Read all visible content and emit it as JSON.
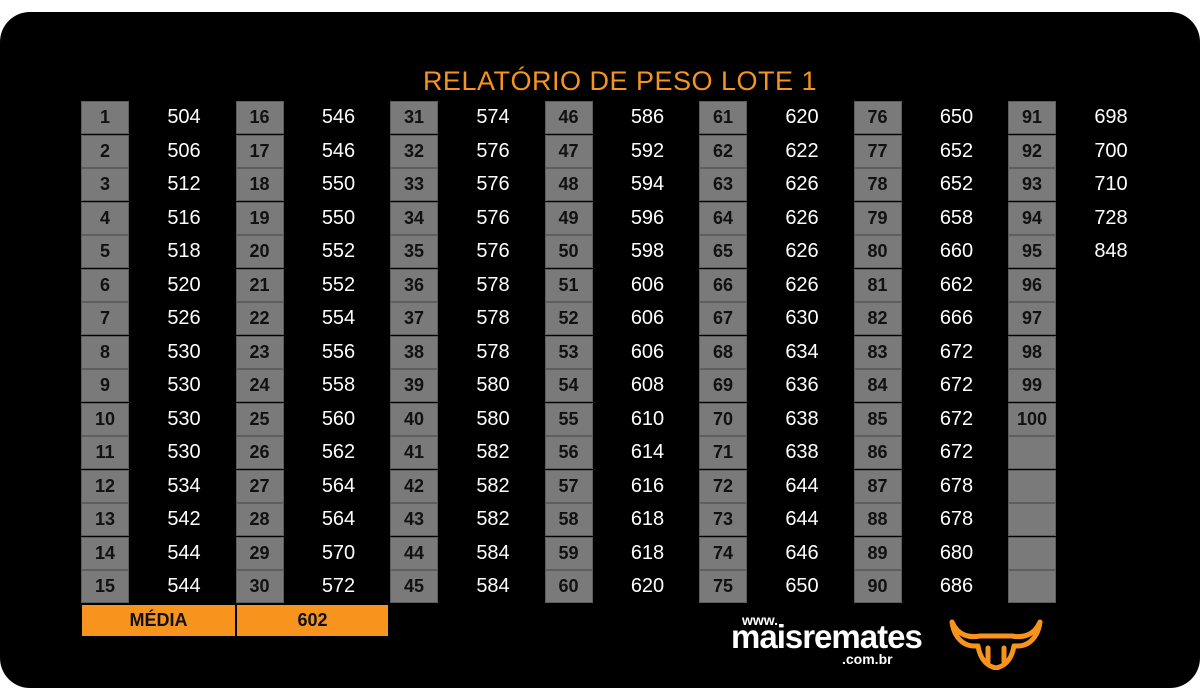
{
  "title": "RELATÓRIO DE PESO LOTE 1",
  "columns": [
    [
      [
        "1",
        "504"
      ],
      [
        "2",
        "506"
      ],
      [
        "3",
        "512"
      ],
      [
        "4",
        "516"
      ],
      [
        "5",
        "518"
      ],
      [
        "6",
        "520"
      ],
      [
        "7",
        "526"
      ],
      [
        "8",
        "530"
      ],
      [
        "9",
        "530"
      ],
      [
        "10",
        "530"
      ],
      [
        "11",
        "530"
      ],
      [
        "12",
        "534"
      ],
      [
        "13",
        "542"
      ],
      [
        "14",
        "544"
      ],
      [
        "15",
        "544"
      ]
    ],
    [
      [
        "16",
        "546"
      ],
      [
        "17",
        "546"
      ],
      [
        "18",
        "550"
      ],
      [
        "19",
        "550"
      ],
      [
        "20",
        "552"
      ],
      [
        "21",
        "552"
      ],
      [
        "22",
        "554"
      ],
      [
        "23",
        "556"
      ],
      [
        "24",
        "558"
      ],
      [
        "25",
        "560"
      ],
      [
        "26",
        "562"
      ],
      [
        "27",
        "564"
      ],
      [
        "28",
        "564"
      ],
      [
        "29",
        "570"
      ],
      [
        "30",
        "572"
      ]
    ],
    [
      [
        "31",
        "574"
      ],
      [
        "32",
        "576"
      ],
      [
        "33",
        "576"
      ],
      [
        "34",
        "576"
      ],
      [
        "35",
        "576"
      ],
      [
        "36",
        "578"
      ],
      [
        "37",
        "578"
      ],
      [
        "38",
        "578"
      ],
      [
        "39",
        "580"
      ],
      [
        "40",
        "580"
      ],
      [
        "41",
        "582"
      ],
      [
        "42",
        "582"
      ],
      [
        "43",
        "582"
      ],
      [
        "44",
        "584"
      ],
      [
        "45",
        "584"
      ]
    ],
    [
      [
        "46",
        "586"
      ],
      [
        "47",
        "592"
      ],
      [
        "48",
        "594"
      ],
      [
        "49",
        "596"
      ],
      [
        "50",
        "598"
      ],
      [
        "51",
        "606"
      ],
      [
        "52",
        "606"
      ],
      [
        "53",
        "606"
      ],
      [
        "54",
        "608"
      ],
      [
        "55",
        "610"
      ],
      [
        "56",
        "614"
      ],
      [
        "57",
        "616"
      ],
      [
        "58",
        "618"
      ],
      [
        "59",
        "618"
      ],
      [
        "60",
        "620"
      ]
    ],
    [
      [
        "61",
        "620"
      ],
      [
        "62",
        "622"
      ],
      [
        "63",
        "626"
      ],
      [
        "64",
        "626"
      ],
      [
        "65",
        "626"
      ],
      [
        "66",
        "626"
      ],
      [
        "67",
        "630"
      ],
      [
        "68",
        "634"
      ],
      [
        "69",
        "636"
      ],
      [
        "70",
        "638"
      ],
      [
        "71",
        "638"
      ],
      [
        "72",
        "644"
      ],
      [
        "73",
        "644"
      ],
      [
        "74",
        "646"
      ],
      [
        "75",
        "650"
      ]
    ],
    [
      [
        "76",
        "650"
      ],
      [
        "77",
        "652"
      ],
      [
        "78",
        "652"
      ],
      [
        "79",
        "658"
      ],
      [
        "80",
        "660"
      ],
      [
        "81",
        "662"
      ],
      [
        "82",
        "666"
      ],
      [
        "83",
        "672"
      ],
      [
        "84",
        "672"
      ],
      [
        "85",
        "672"
      ],
      [
        "86",
        "672"
      ],
      [
        "87",
        "678"
      ],
      [
        "88",
        "678"
      ],
      [
        "89",
        "680"
      ],
      [
        "90",
        "686"
      ]
    ],
    [
      [
        "91",
        "698"
      ],
      [
        "92",
        "700"
      ],
      [
        "93",
        "710"
      ],
      [
        "94",
        "728"
      ],
      [
        "95",
        "848"
      ],
      [
        "96",
        ""
      ],
      [
        "97",
        ""
      ],
      [
        "98",
        ""
      ],
      [
        "99",
        ""
      ],
      [
        "100",
        ""
      ],
      [
        "",
        ""
      ],
      [
        "",
        ""
      ],
      [
        "",
        ""
      ],
      [
        "",
        ""
      ],
      [
        "",
        ""
      ]
    ]
  ],
  "media_label": "MÉDIA",
  "media_value": "602",
  "logo": {
    "www": "www.",
    "brand": "maisremates",
    "domain": ".com.br",
    "icon": "bull-head-icon"
  },
  "colors": {
    "accent": "#f7941d",
    "cell": "#7a7a7a",
    "background": "#000000"
  }
}
